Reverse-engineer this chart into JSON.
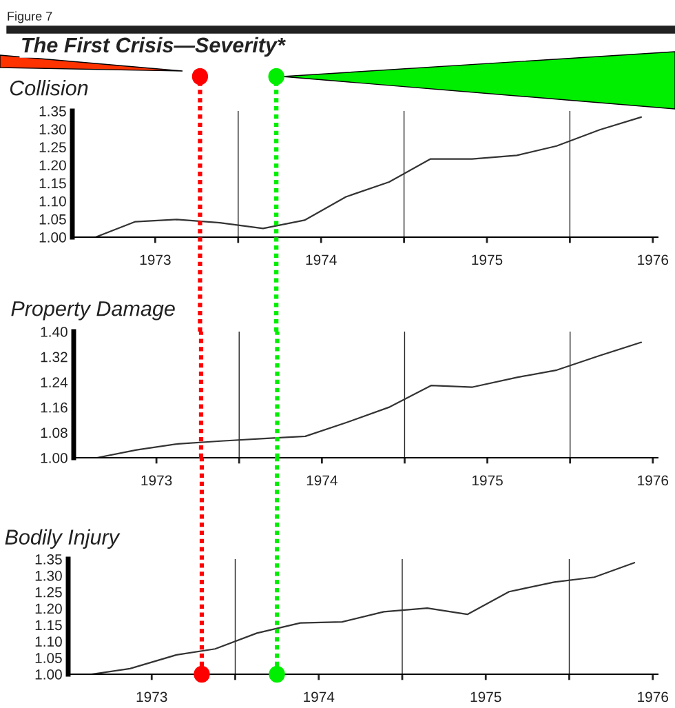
{
  "chart_data": [
    {
      "type": "line",
      "title": "Collision",
      "annotations": [
        "Figure 7",
        "The First Crisis—Severity*"
      ],
      "x": [
        1973.14,
        1973.38,
        1973.63,
        1973.89,
        1974.15,
        1974.4,
        1974.65,
        1974.91,
        1975.16,
        1975.41,
        1975.68,
        1975.92,
        1976.18,
        1976.43
      ],
      "values": [
        1.0,
        1.043,
        1.049,
        1.04,
        1.024,
        1.047,
        1.112,
        1.153,
        1.217,
        1.217,
        1.227,
        1.253,
        1.298,
        1.333
      ],
      "color": "#333333",
      "xlim": [
        1973,
        1976.53
      ],
      "ylim": [
        1.0,
        1.35
      ],
      "xticks": [
        {
          "value": 1973.5,
          "label": "1973"
        },
        {
          "value": 1974.5,
          "label": "1974"
        },
        {
          "value": 1975.5,
          "label": "1975"
        },
        {
          "value": 1976.5,
          "label": "1976"
        },
        {
          "value": 1974,
          "label": null
        },
        {
          "value": 1975,
          "label": null
        },
        {
          "value": 1976,
          "label": null
        }
      ],
      "yticks": [
        {
          "value": 1.0,
          "label": "1.00"
        },
        {
          "value": 1.05,
          "label": "1.05"
        },
        {
          "value": 1.1,
          "label": "1.10"
        },
        {
          "value": 1.15,
          "label": "1.15"
        },
        {
          "value": 1.2,
          "label": "1.20"
        },
        {
          "value": 1.25,
          "label": "1.25"
        },
        {
          "value": 1.3,
          "label": "1.30"
        },
        {
          "value": 1.35,
          "label": "1.35"
        }
      ],
      "ref_lines": [
        {
          "axis": "x",
          "value": 1974,
          "color": "#222222",
          "line_style": "solid"
        },
        {
          "axis": "x",
          "value": 1975,
          "color": "#222222",
          "line_style": "solid"
        },
        {
          "axis": "x",
          "value": 1976,
          "color": "#222222",
          "line_style": "solid"
        },
        {
          "axis": "x",
          "value": 1973.77,
          "color": "#ff0000",
          "line_style": "dotted"
        },
        {
          "axis": "x",
          "value": 1974.23,
          "color": "#00ee00",
          "line_style": "dotted"
        }
      ]
    },
    {
      "type": "line",
      "title": "Property Damage",
      "x": [
        1973.14,
        1973.38,
        1973.63,
        1973.89,
        1974.15,
        1974.4,
        1974.65,
        1974.91,
        1975.16,
        1975.41,
        1975.68,
        1975.92,
        1976.18,
        1976.43
      ],
      "values": [
        1.0,
        1.025,
        1.044,
        1.053,
        1.061,
        1.068,
        1.112,
        1.161,
        1.229,
        1.224,
        1.255,
        1.278,
        1.324,
        1.366
      ],
      "color": "#333333",
      "xlim": [
        1973,
        1976.53
      ],
      "ylim": [
        1.0,
        1.4
      ],
      "xticks": [
        {
          "value": 1973.5,
          "label": "1973"
        },
        {
          "value": 1974.5,
          "label": "1974"
        },
        {
          "value": 1975.5,
          "label": "1975"
        },
        {
          "value": 1976.5,
          "label": "1976"
        },
        {
          "value": 1974,
          "label": null
        },
        {
          "value": 1975,
          "label": null
        },
        {
          "value": 1976,
          "label": null
        }
      ],
      "yticks": [
        {
          "value": 1.0,
          "label": "1.00"
        },
        {
          "value": 1.08,
          "label": "1.08"
        },
        {
          "value": 1.16,
          "label": "1.16"
        },
        {
          "value": 1.24,
          "label": "1.24"
        },
        {
          "value": 1.32,
          "label": "1.32"
        },
        {
          "value": 1.4,
          "label": "1.40"
        }
      ],
      "ref_lines": [
        {
          "axis": "x",
          "value": 1974,
          "color": "#222222",
          "line_style": "solid"
        },
        {
          "axis": "x",
          "value": 1975,
          "color": "#222222",
          "line_style": "solid"
        },
        {
          "axis": "x",
          "value": 1976,
          "color": "#222222",
          "line_style": "solid"
        },
        {
          "axis": "x",
          "value": 1973.77,
          "color": "#ff0000",
          "line_style": "dotted"
        },
        {
          "axis": "x",
          "value": 1974.23,
          "color": "#00ee00",
          "line_style": "dotted"
        }
      ]
    },
    {
      "type": "line",
      "title": "Bodily Injury",
      "x": [
        1973.14,
        1973.37,
        1973.65,
        1973.88,
        1974.13,
        1974.39,
        1974.64,
        1974.89,
        1975.15,
        1975.39,
        1975.64,
        1975.91,
        1976.15,
        1976.39
      ],
      "values": [
        1.0,
        1.017,
        1.059,
        1.077,
        1.125,
        1.156,
        1.159,
        1.19,
        1.201,
        1.182,
        1.251,
        1.28,
        1.295,
        1.339
      ],
      "color": "#333333",
      "xlim": [
        1973,
        1976.53
      ],
      "ylim": [
        1.0,
        1.35
      ],
      "xticks": [
        {
          "value": 1973.5,
          "label": "1973"
        },
        {
          "value": 1974.5,
          "label": "1974"
        },
        {
          "value": 1975.5,
          "label": "1975"
        },
        {
          "value": 1976.5,
          "label": "1976"
        },
        {
          "value": 1974,
          "label": null
        },
        {
          "value": 1975,
          "label": null
        },
        {
          "value": 1976,
          "label": null
        }
      ],
      "yticks": [
        {
          "value": 1.0,
          "label": "1.00"
        },
        {
          "value": 1.05,
          "label": "1.05"
        },
        {
          "value": 1.1,
          "label": "1.10"
        },
        {
          "value": 1.15,
          "label": "1.15"
        },
        {
          "value": 1.2,
          "label": "1.20"
        },
        {
          "value": 1.25,
          "label": "1.25"
        },
        {
          "value": 1.3,
          "label": "1.30"
        },
        {
          "value": 1.35,
          "label": "1.35"
        }
      ],
      "ref_lines": [
        {
          "axis": "x",
          "value": 1974,
          "color": "#222222",
          "line_style": "solid"
        },
        {
          "axis": "x",
          "value": 1975,
          "color": "#222222",
          "line_style": "solid"
        },
        {
          "axis": "x",
          "value": 1976,
          "color": "#222222",
          "line_style": "solid"
        },
        {
          "axis": "x",
          "value": 1973.8,
          "color": "#ff0000",
          "line_style": "dotted"
        },
        {
          "axis": "x",
          "value": 1974.25,
          "color": "#00ee00",
          "line_style": "dotted"
        }
      ]
    }
  ]
}
